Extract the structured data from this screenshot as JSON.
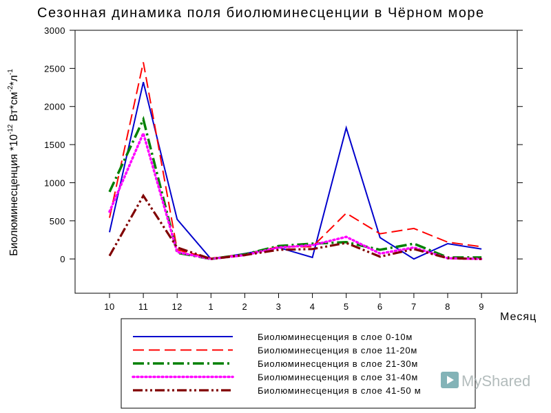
{
  "chart_data": {
    "type": "line",
    "title": "Сезонная динамика поля биолюминесценции в Чёрном море",
    "xlabel": "Месяц",
    "ylabel": "Биолюминесценция *10",
    "ylabel_exp1": "-12",
    "ylabel_mid": " Вт*см",
    "ylabel_exp2": "-2",
    "ylabel_mid2": "*л",
    "ylabel_exp3": "-1",
    "categories": [
      "10",
      "11",
      "12",
      "1",
      "2",
      "3",
      "4",
      "5",
      "6",
      "7",
      "8",
      "9"
    ],
    "yticks": [
      "0",
      "500",
      "1000",
      "1500",
      "2000",
      "2500",
      "3000"
    ],
    "ylim": [
      -450,
      3000
    ],
    "grid": false,
    "legend_position": "bottom",
    "series": [
      {
        "name": "Биолюминесценция в слое 0-10м",
        "color": "#0000cc",
        "dash": "solid",
        "values": [
          350,
          2320,
          520,
          0,
          70,
          150,
          20,
          1720,
          280,
          0,
          200,
          130
        ]
      },
      {
        "name": "Биолюминесценция в слое 11-20м",
        "color": "#ff0000",
        "dash": "dash",
        "values": [
          540,
          2580,
          120,
          10,
          60,
          160,
          160,
          600,
          330,
          400,
          220,
          160
        ]
      },
      {
        "name": "Биолюминесценция в слое 21-30м",
        "color": "#008000",
        "dash": "dashdot",
        "values": [
          880,
          1830,
          80,
          0,
          60,
          170,
          200,
          220,
          120,
          200,
          20,
          20
        ]
      },
      {
        "name": "Биолюминесценция в слое 31-40м",
        "color": "#ff00ff",
        "dash": "dot",
        "values": [
          620,
          1650,
          90,
          0,
          50,
          150,
          180,
          290,
          70,
          150,
          10,
          0
        ]
      },
      {
        "name": "Биолюминесценция в слое 41-50 м",
        "color": "#800000",
        "dash": "dashdotdot",
        "values": [
          40,
          830,
          150,
          0,
          50,
          120,
          130,
          210,
          30,
          130,
          10,
          0
        ]
      }
    ]
  },
  "watermark": {
    "text": "MyShared",
    "icon": "play-icon"
  }
}
